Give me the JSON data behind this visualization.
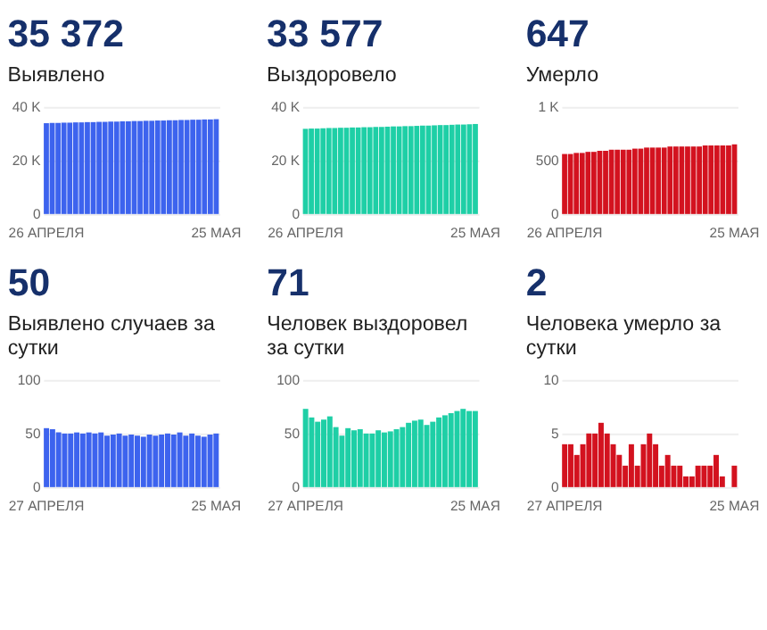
{
  "chart_data": [
    {
      "type": "bar",
      "title": "35 372",
      "subtitle": "Выявлено",
      "color": "#3d63ee",
      "categories": [
        "26 АПРЕЛЯ",
        null,
        null,
        null,
        null,
        null,
        null,
        null,
        null,
        null,
        null,
        null,
        null,
        null,
        null,
        null,
        null,
        null,
        null,
        null,
        null,
        null,
        null,
        null,
        null,
        null,
        null,
        null,
        null,
        "25 МАЯ"
      ],
      "values": [
        33900,
        34000,
        34000,
        34100,
        34100,
        34200,
        34200,
        34300,
        34300,
        34400,
        34400,
        34500,
        34500,
        34600,
        34600,
        34700,
        34700,
        34800,
        34800,
        34900,
        34900,
        35000,
        35000,
        35100,
        35100,
        35200,
        35200,
        35300,
        35300,
        35400
      ],
      "ylim": [
        0,
        40000
      ],
      "yticks": [
        0,
        {
          "value": 20000,
          "label": "20 K"
        },
        {
          "value": 40000,
          "label": "40 K"
        }
      ],
      "grid": "y"
    },
    {
      "type": "bar",
      "title": "33 577",
      "subtitle": "Выздоровело",
      "color": "#1ecfa6",
      "categories": [
        "26 АПРЕЛЯ",
        null,
        null,
        null,
        null,
        null,
        null,
        null,
        null,
        null,
        null,
        null,
        null,
        null,
        null,
        null,
        null,
        null,
        null,
        null,
        null,
        null,
        null,
        null,
        null,
        null,
        null,
        null,
        null,
        "25 МАЯ"
      ],
      "values": [
        31800,
        31900,
        31900,
        32000,
        32100,
        32100,
        32200,
        32200,
        32300,
        32300,
        32400,
        32400,
        32500,
        32500,
        32600,
        32700,
        32700,
        32800,
        32800,
        32900,
        33000,
        33000,
        33100,
        33200,
        33200,
        33300,
        33400,
        33400,
        33500,
        33600
      ],
      "ylim": [
        0,
        40000
      ],
      "yticks": [
        0,
        {
          "value": 20000,
          "label": "20 K"
        },
        {
          "value": 40000,
          "label": "40 K"
        }
      ],
      "grid": "y"
    },
    {
      "type": "bar",
      "title": "647",
      "subtitle": "Умерло",
      "color": "#d3121f",
      "categories": [
        "26 АПРЕЛЯ",
        null,
        null,
        null,
        null,
        null,
        null,
        null,
        null,
        null,
        null,
        null,
        null,
        null,
        null,
        null,
        null,
        null,
        null,
        null,
        null,
        null,
        null,
        null,
        null,
        null,
        null,
        null,
        null,
        "25 МАЯ"
      ],
      "values": [
        560,
        560,
        570,
        570,
        580,
        580,
        590,
        590,
        600,
        600,
        600,
        600,
        610,
        610,
        620,
        620,
        620,
        620,
        630,
        630,
        630,
        630,
        630,
        630,
        640,
        640,
        640,
        640,
        640,
        650
      ],
      "ylim": [
        0,
        1000
      ],
      "yticks": [
        0,
        500,
        {
          "value": 1000,
          "label": "1 K"
        }
      ],
      "grid": "y"
    },
    {
      "type": "bar",
      "title": "50",
      "subtitle": "Выявлено случаев за сутки",
      "color": "#3d63ee",
      "categories": [
        "27 АПРЕЛЯ",
        null,
        null,
        null,
        null,
        null,
        null,
        null,
        null,
        null,
        null,
        null,
        null,
        null,
        null,
        null,
        null,
        null,
        null,
        null,
        null,
        null,
        null,
        null,
        null,
        null,
        null,
        null,
        "25 МАЯ"
      ],
      "values": [
        55,
        54,
        51,
        50,
        50,
        51,
        50,
        51,
        50,
        51,
        48,
        49,
        50,
        48,
        49,
        48,
        47,
        49,
        48,
        49,
        50,
        49,
        51,
        48,
        50,
        48,
        47,
        49,
        50
      ],
      "ylim": [
        0,
        100
      ],
      "yticks": [
        0,
        50,
        100
      ],
      "grid": "y"
    },
    {
      "type": "bar",
      "title": "71",
      "subtitle": "Человек выздоровел за сутки",
      "color": "#1ecfa6",
      "categories": [
        "27 АПРЕЛЯ",
        null,
        null,
        null,
        null,
        null,
        null,
        null,
        null,
        null,
        null,
        null,
        null,
        null,
        null,
        null,
        null,
        null,
        null,
        null,
        null,
        null,
        null,
        null,
        null,
        null,
        null,
        null,
        "25 МАЯ"
      ],
      "values": [
        73,
        65,
        61,
        63,
        66,
        56,
        48,
        55,
        53,
        54,
        50,
        50,
        53,
        51,
        52,
        54,
        56,
        60,
        62,
        63,
        58,
        61,
        65,
        67,
        69,
        71,
        73,
        71,
        71
      ],
      "ylim": [
        0,
        100
      ],
      "yticks": [
        0,
        50,
        100
      ],
      "grid": "y"
    },
    {
      "type": "bar",
      "title": "2",
      "subtitle": "Человека умерло за сутки",
      "color": "#d3121f",
      "categories": [
        "27 АПРЕЛЯ",
        null,
        null,
        null,
        null,
        null,
        null,
        null,
        null,
        null,
        null,
        null,
        null,
        null,
        null,
        null,
        null,
        null,
        null,
        null,
        null,
        null,
        null,
        null,
        null,
        null,
        null,
        null,
        "25 МАЯ"
      ],
      "values": [
        4,
        4,
        3,
        4,
        5,
        5,
        6,
        5,
        4,
        3,
        2,
        4,
        2,
        4,
        5,
        4,
        2,
        3,
        2,
        2,
        1,
        1,
        2,
        2,
        2,
        3,
        1,
        0,
        2
      ],
      "ylim": [
        0,
        10
      ],
      "yticks": [
        0,
        5,
        10
      ],
      "grid": "y"
    }
  ]
}
